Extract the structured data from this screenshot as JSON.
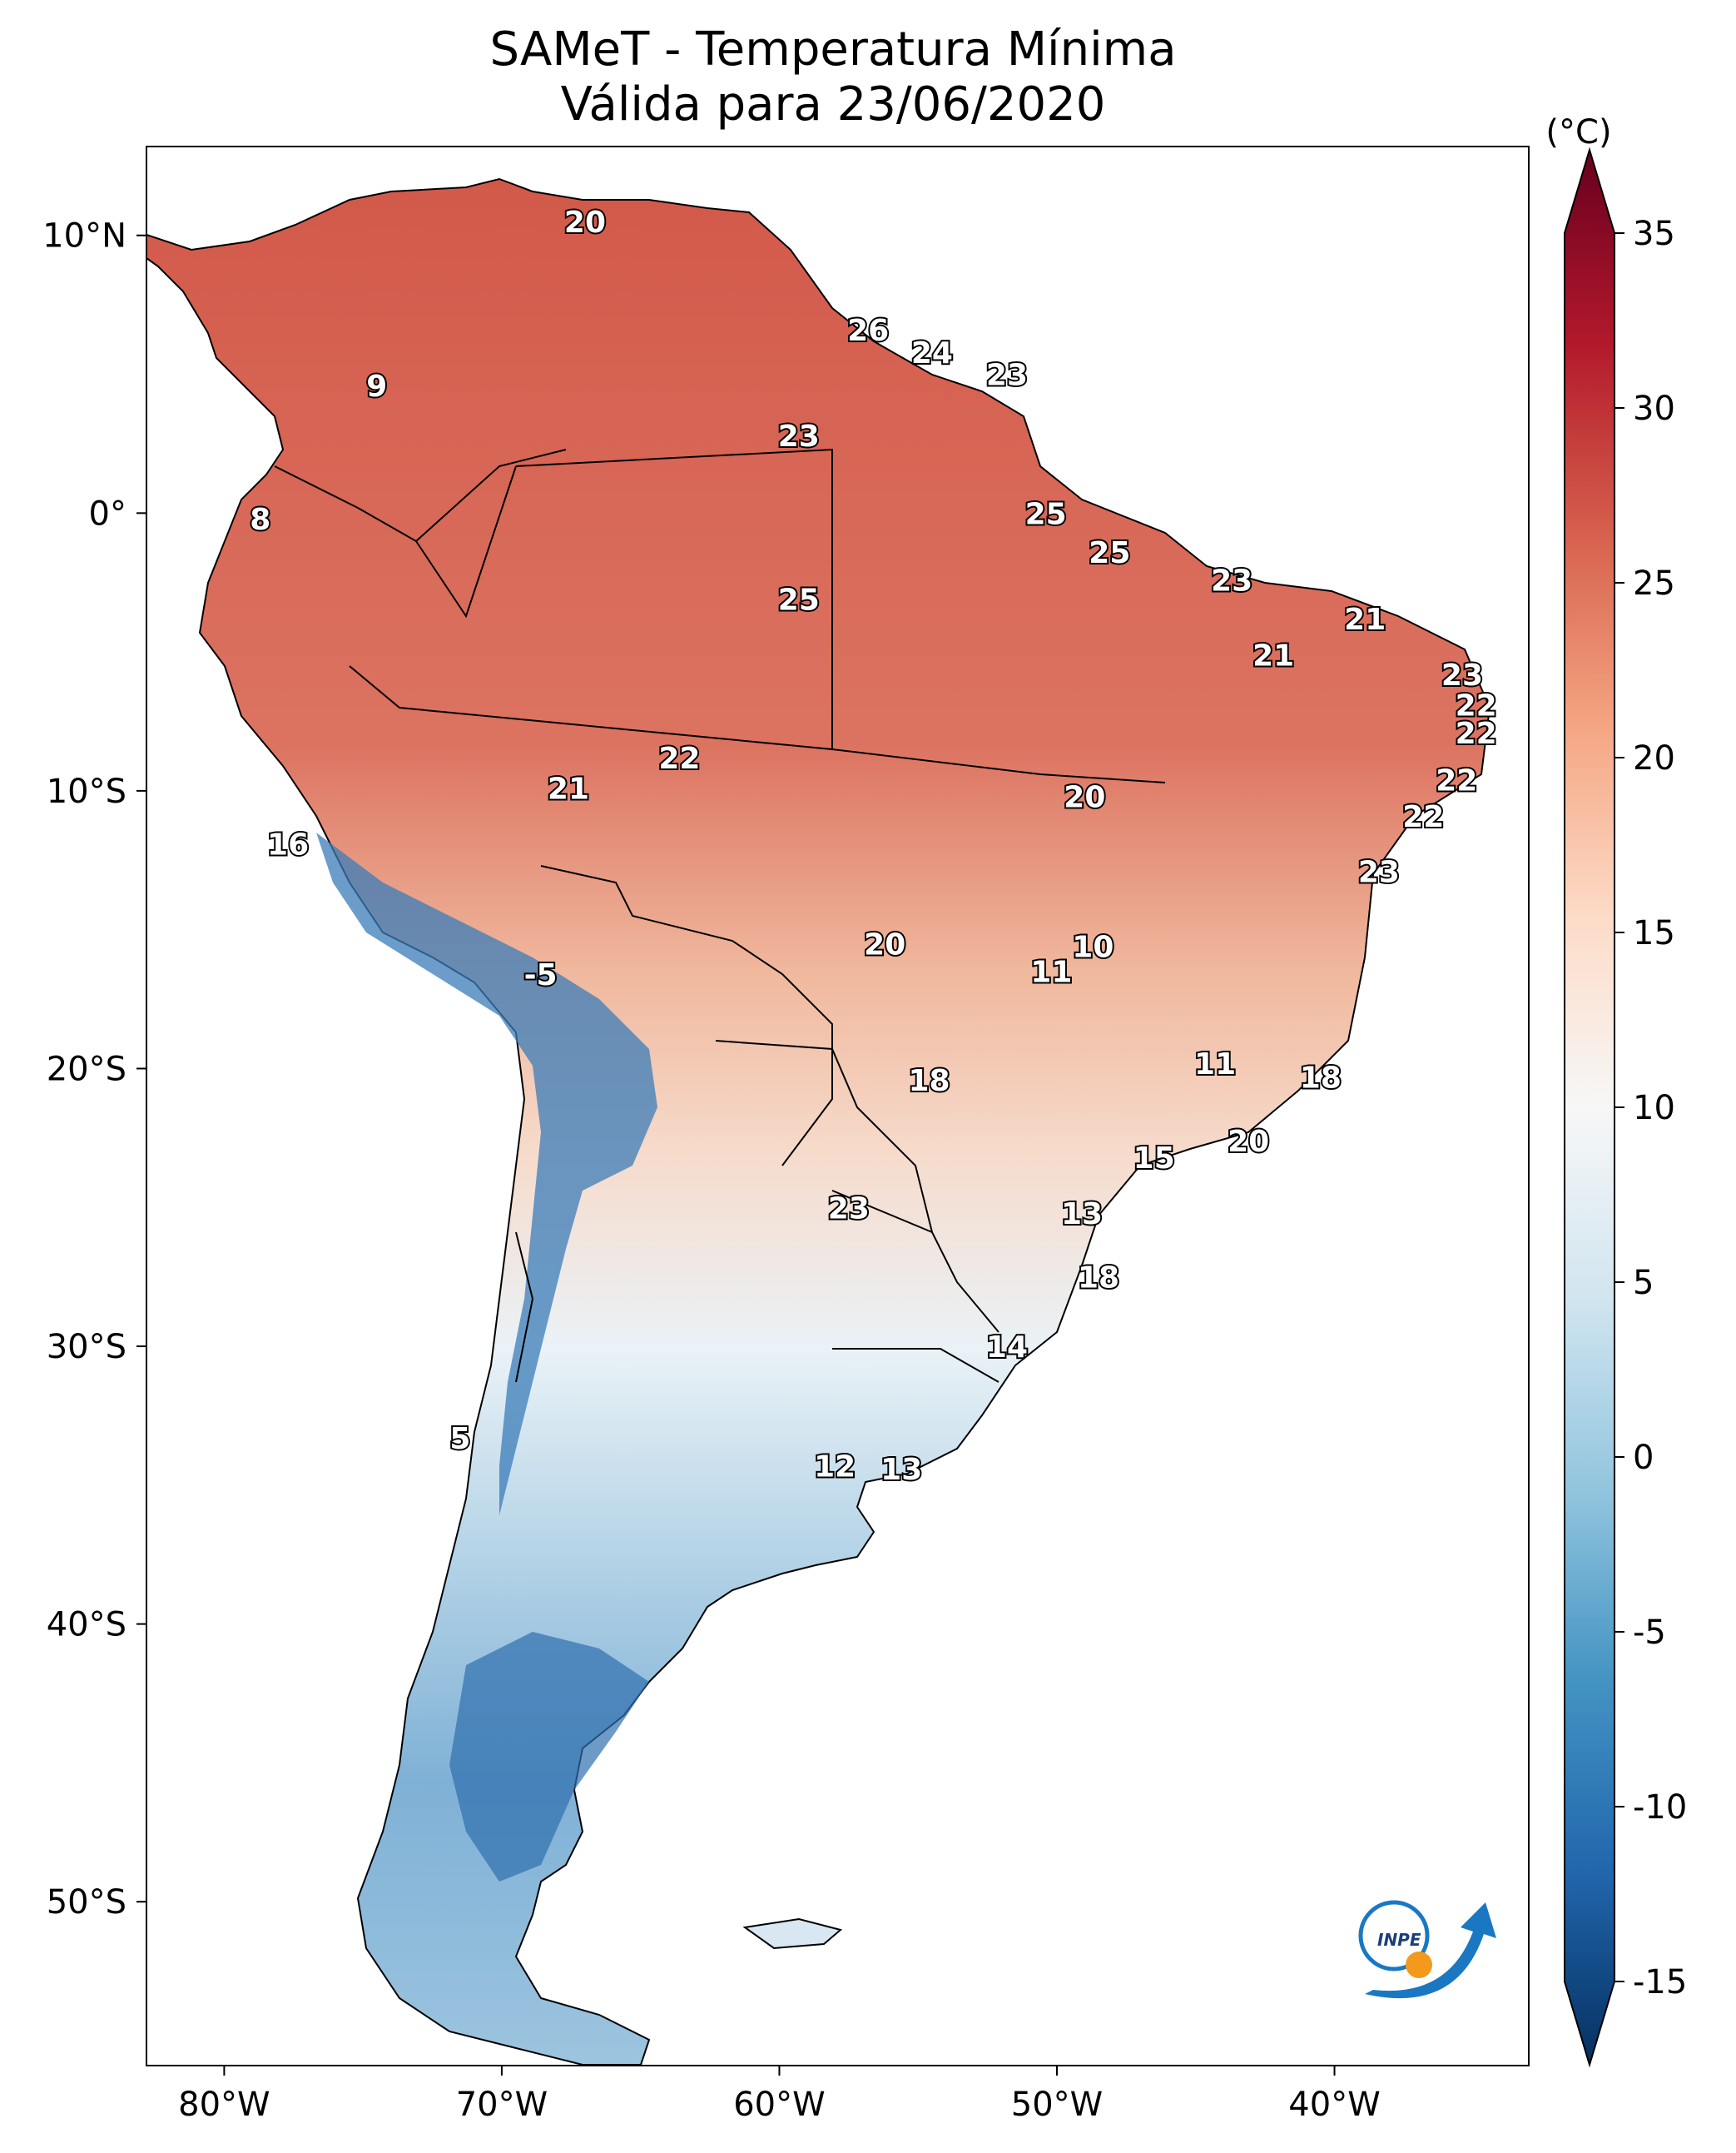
{
  "title": "SAMeT - Temperatura Mínima",
  "subtitle": "Válida para 23/06/2020",
  "colorbar": {
    "unit": "(°C)",
    "ticks": [
      "35",
      "30",
      "25",
      "20",
      "15",
      "10",
      "5",
      "0",
      "-5",
      "-10",
      "-15"
    ],
    "range": [
      -15,
      35
    ],
    "colormap": "RdBu_r"
  },
  "axes": {
    "lon_ticks": [
      "80°W",
      "70°W",
      "60°W",
      "50°W",
      "40°W"
    ],
    "lat_ticks": [
      "10°N",
      "0°",
      "10°S",
      "20°S",
      "30°S",
      "40°S",
      "50°S"
    ]
  },
  "point_labels": [
    {
      "value": "20",
      "lon": -67,
      "lat": 10.5
    },
    {
      "value": "26",
      "lon": -56.8,
      "lat": 6.6
    },
    {
      "value": "24",
      "lon": -54.5,
      "lat": 5.8
    },
    {
      "value": "23",
      "lon": -51.8,
      "lat": 5.0
    },
    {
      "value": "9",
      "lon": -74.5,
      "lat": 4.6
    },
    {
      "value": "23",
      "lon": -59.3,
      "lat": 2.8
    },
    {
      "value": "25",
      "lon": -50.4,
      "lat": 0.0
    },
    {
      "value": "8",
      "lon": -78.7,
      "lat": -0.2
    },
    {
      "value": "25",
      "lon": -48.1,
      "lat": -1.4
    },
    {
      "value": "25",
      "lon": -59.3,
      "lat": -3.1
    },
    {
      "value": "23",
      "lon": -43.7,
      "lat": -2.4
    },
    {
      "value": "21",
      "lon": -38.9,
      "lat": -3.8
    },
    {
      "value": "21",
      "lon": -42.2,
      "lat": -5.1
    },
    {
      "value": "23",
      "lon": -35.4,
      "lat": -5.8
    },
    {
      "value": "22",
      "lon": -34.9,
      "lat": -6.9
    },
    {
      "value": "22",
      "lon": -34.9,
      "lat": -7.9
    },
    {
      "value": "22",
      "lon": -63.6,
      "lat": -8.8
    },
    {
      "value": "22",
      "lon": -35.6,
      "lat": -9.6
    },
    {
      "value": "20",
      "lon": -49.0,
      "lat": -10.2
    },
    {
      "value": "21",
      "lon": -67.6,
      "lat": -9.9
    },
    {
      "value": "22",
      "lon": -36.8,
      "lat": -10.9
    },
    {
      "value": "16",
      "lon": -77.7,
      "lat": -11.9
    },
    {
      "value": "23",
      "lon": -38.4,
      "lat": -12.9
    },
    {
      "value": "20",
      "lon": -56.2,
      "lat": -15.5
    },
    {
      "value": "10",
      "lon": -48.7,
      "lat": -15.6
    },
    {
      "value": "11",
      "lon": -50.2,
      "lat": -16.5
    },
    {
      "value": "-5",
      "lon": -68.6,
      "lat": -16.6
    },
    {
      "value": "11",
      "lon": -44.3,
      "lat": -19.8
    },
    {
      "value": "18",
      "lon": -54.6,
      "lat": -20.4
    },
    {
      "value": "18",
      "lon": -40.5,
      "lat": -20.3
    },
    {
      "value": "20",
      "lon": -43.1,
      "lat": -22.6
    },
    {
      "value": "15",
      "lon": -46.5,
      "lat": -23.2
    },
    {
      "value": "13",
      "lon": -49.1,
      "lat": -25.2
    },
    {
      "value": "23",
      "lon": -57.5,
      "lat": -25.0
    },
    {
      "value": "18",
      "lon": -48.5,
      "lat": -27.5
    },
    {
      "value": "14",
      "lon": -51.8,
      "lat": -30.0
    },
    {
      "value": "5",
      "lon": -71.5,
      "lat": -33.3
    },
    {
      "value": "12",
      "lon": -58.0,
      "lat": -34.3
    },
    {
      "value": "13",
      "lon": -55.6,
      "lat": -34.4
    }
  ],
  "logo": {
    "text": "INPE"
  }
}
